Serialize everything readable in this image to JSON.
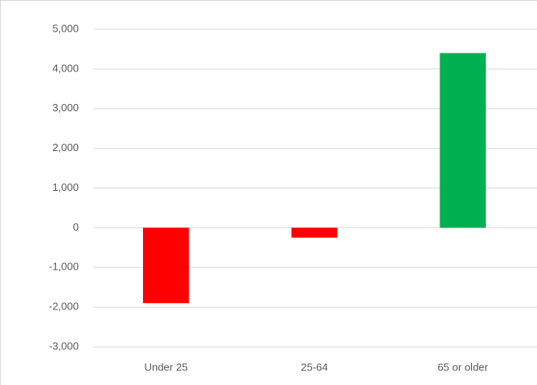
{
  "chart_data": {
    "type": "bar",
    "categories": [
      "Under 25",
      "25-64",
      "65 or older"
    ],
    "values": [
      -1900,
      -250,
      4400
    ],
    "colors": [
      "#ff0000",
      "#ff0000",
      "#00b050"
    ],
    "ylim": [
      -3000,
      5000
    ],
    "yticks": [
      {
        "value": -3000,
        "label": "-3,000"
      },
      {
        "value": -2000,
        "label": "-2,000"
      },
      {
        "value": -1000,
        "label": "-1,000"
      },
      0,
      {
        "value": 1000,
        "label": "1,000"
      },
      {
        "value": 2000,
        "label": "2,000"
      },
      {
        "value": 3000,
        "label": "3,000"
      },
      {
        "value": 4000,
        "label": "4,000"
      },
      {
        "value": 5000,
        "label": "5,000"
      }
    ],
    "grid": true
  }
}
